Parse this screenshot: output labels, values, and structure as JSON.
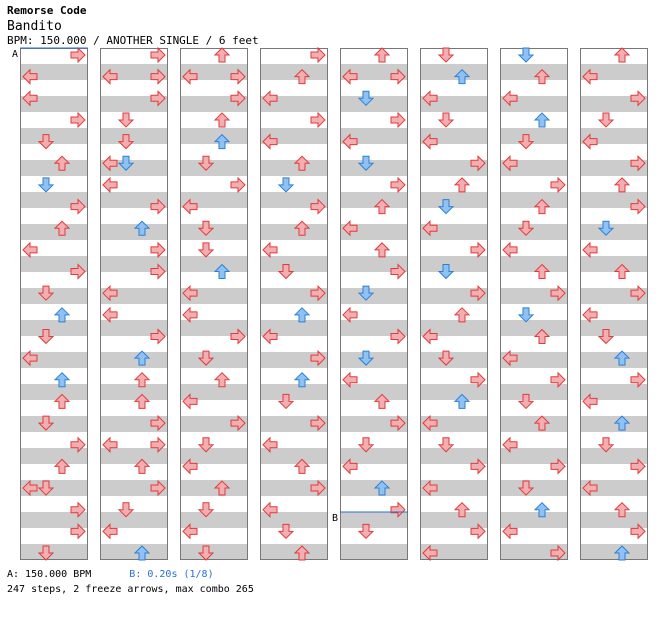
{
  "header": {
    "title": "Remorse Code",
    "subtitle": "Bandito",
    "info": "BPM: 150.000 / ANOTHER SINGLE / 6 feet"
  },
  "footer": {
    "bpm_label": "A: 150.000 BPM",
    "stop_label": "B: 0.20s (1/8)",
    "stats": "247 steps, 2 freeze arrows, max combo 265"
  },
  "markers": [
    {
      "label": "A",
      "column": 0,
      "beat": 0
    },
    {
      "label": "B",
      "column": 4,
      "beat": 29
    }
  ],
  "colors": {
    "red_fill": "#f2aeb0",
    "red_stroke": "#e23a3a",
    "blue_fill": "#8ec2f3",
    "blue_stroke": "#2d7fd6",
    "pink_fill": "#f7b5f0",
    "pink_stroke": "#d24ad3",
    "freeze_fill": "#b8f0b8",
    "freeze_stroke": "#3ea63e",
    "band": "#cccccc",
    "column_border": "#777777"
  },
  "columns": [
    {
      "notes": [
        [
          0,
          3
        ],
        [
          1,
          0
        ],
        [
          2,
          0
        ],
        [
          3,
          3
        ],
        [
          4,
          1
        ],
        [
          5,
          2
        ],
        [
          6,
          1
        ],
        [
          7,
          3
        ],
        [
          8,
          2
        ],
        [
          9,
          0
        ],
        [
          10,
          3
        ],
        [
          11,
          1
        ],
        [
          12,
          2
        ],
        [
          13,
          1
        ],
        [
          14,
          0
        ],
        [
          15,
          2
        ],
        [
          16,
          2
        ],
        [
          17,
          1
        ],
        [
          18,
          3
        ],
        [
          19,
          2
        ],
        [
          20,
          0
        ],
        [
          20,
          1
        ],
        [
          21,
          3
        ],
        [
          22,
          3
        ],
        [
          23,
          1
        ]
      ]
    },
    {
      "notes": [
        [
          0,
          3
        ],
        [
          1,
          0
        ],
        [
          1,
          3
        ],
        [
          2,
          3
        ],
        [
          3,
          1
        ],
        [
          4,
          1
        ],
        [
          5,
          0
        ],
        [
          5,
          1
        ],
        [
          6,
          0
        ],
        [
          7,
          3
        ],
        [
          8,
          2
        ],
        [
          9,
          3
        ],
        [
          10,
          3
        ],
        [
          11,
          0
        ],
        [
          12,
          0
        ],
        [
          13,
          3
        ],
        [
          14,
          2
        ],
        [
          15,
          2
        ],
        [
          16,
          2
        ],
        [
          17,
          3
        ],
        [
          18,
          0
        ],
        [
          18,
          3
        ],
        [
          19,
          2
        ],
        [
          20,
          3
        ],
        [
          21,
          1
        ],
        [
          22,
          0
        ],
        [
          23,
          2
        ]
      ]
    },
    {
      "notes": [
        [
          0,
          2
        ],
        [
          1,
          0
        ],
        [
          1,
          3
        ],
        [
          2,
          3
        ],
        [
          3,
          2
        ],
        [
          4,
          2
        ],
        [
          5,
          1
        ],
        [
          6,
          3
        ],
        [
          7,
          0
        ],
        [
          8,
          1
        ],
        [
          9,
          1
        ],
        [
          10,
          2
        ],
        [
          11,
          0
        ],
        [
          12,
          0
        ],
        [
          13,
          3
        ],
        [
          14,
          1
        ],
        [
          15,
          2
        ],
        [
          16,
          0
        ],
        [
          17,
          3
        ],
        [
          18,
          1
        ],
        [
          19,
          0
        ],
        [
          20,
          2
        ],
        [
          21,
          1
        ],
        [
          22,
          0
        ],
        [
          23,
          1
        ]
      ]
    },
    {
      "notes": [
        [
          0,
          3
        ],
        [
          1,
          2
        ],
        [
          2,
          0
        ],
        [
          3,
          3
        ],
        [
          4,
          0
        ],
        [
          5,
          2
        ],
        [
          6,
          1
        ],
        [
          7,
          3
        ],
        [
          8,
          2
        ],
        [
          9,
          0
        ],
        [
          10,
          1
        ],
        [
          11,
          3
        ],
        [
          12,
          2
        ],
        [
          13,
          0
        ],
        [
          14,
          3
        ],
        [
          15,
          2
        ],
        [
          16,
          1
        ],
        [
          17,
          3
        ],
        [
          18,
          0
        ],
        [
          19,
          2
        ],
        [
          20,
          3
        ],
        [
          21,
          0
        ],
        [
          22,
          1
        ],
        [
          23,
          2
        ]
      ]
    },
    {
      "notes": [
        [
          0,
          2
        ],
        [
          1,
          0
        ],
        [
          1,
          3
        ],
        [
          2,
          1
        ],
        [
          3,
          3
        ],
        [
          4,
          0
        ],
        [
          5,
          1
        ],
        [
          6,
          3
        ],
        [
          7,
          2
        ],
        [
          8,
          0
        ],
        [
          9,
          2
        ],
        [
          10,
          3
        ],
        [
          11,
          1
        ],
        [
          12,
          0
        ],
        [
          13,
          3
        ],
        [
          14,
          1
        ],
        [
          15,
          0
        ],
        [
          16,
          2
        ],
        [
          17,
          3
        ],
        [
          18,
          1
        ],
        [
          19,
          0
        ],
        [
          20,
          2
        ],
        [
          21,
          3
        ],
        [
          22,
          1
        ]
      ]
    },
    {
      "notes": [
        [
          0,
          1
        ],
        [
          1,
          2
        ],
        [
          2,
          0
        ],
        [
          3,
          1
        ],
        [
          4,
          0
        ],
        [
          5,
          3
        ],
        [
          6,
          2
        ],
        [
          7,
          1
        ],
        [
          8,
          0
        ],
        [
          9,
          3
        ],
        [
          10,
          1
        ],
        [
          11,
          3
        ],
        [
          12,
          2
        ],
        [
          13,
          0
        ],
        [
          14,
          1
        ],
        [
          15,
          3
        ],
        [
          16,
          2
        ],
        [
          17,
          0
        ],
        [
          18,
          1
        ],
        [
          19,
          3
        ],
        [
          20,
          0
        ],
        [
          21,
          2
        ],
        [
          22,
          3
        ],
        [
          23,
          0
        ]
      ]
    },
    {
      "notes": [
        [
          0,
          1
        ],
        [
          1,
          2
        ],
        [
          2,
          0
        ],
        [
          3,
          2
        ],
        [
          4,
          1
        ],
        [
          5,
          0
        ],
        [
          6,
          3
        ],
        [
          7,
          2
        ],
        [
          8,
          1
        ],
        [
          9,
          0
        ],
        [
          10,
          2
        ],
        [
          11,
          3
        ],
        [
          12,
          1
        ],
        [
          13,
          2
        ],
        [
          14,
          0
        ],
        [
          15,
          3
        ],
        [
          16,
          1
        ],
        [
          17,
          2
        ],
        [
          18,
          0
        ],
        [
          19,
          3
        ],
        [
          20,
          1
        ],
        [
          21,
          2
        ],
        [
          22,
          0
        ],
        [
          23,
          3
        ]
      ]
    },
    {
      "notes": [
        [
          0,
          2
        ],
        [
          1,
          0
        ],
        [
          2,
          3
        ],
        [
          3,
          1
        ],
        [
          4,
          0
        ],
        [
          5,
          3
        ],
        [
          6,
          2
        ],
        [
          7,
          3
        ],
        [
          8,
          1
        ],
        [
          9,
          0
        ],
        [
          10,
          2
        ],
        [
          11,
          3
        ],
        [
          12,
          0
        ],
        [
          13,
          1
        ],
        [
          14,
          2
        ],
        [
          15,
          3
        ],
        [
          16,
          0
        ],
        [
          17,
          2
        ],
        [
          18,
          1
        ],
        [
          19,
          3
        ],
        [
          20,
          0
        ],
        [
          21,
          2
        ],
        [
          22,
          3
        ],
        [
          23,
          2
        ]
      ]
    }
  ]
}
